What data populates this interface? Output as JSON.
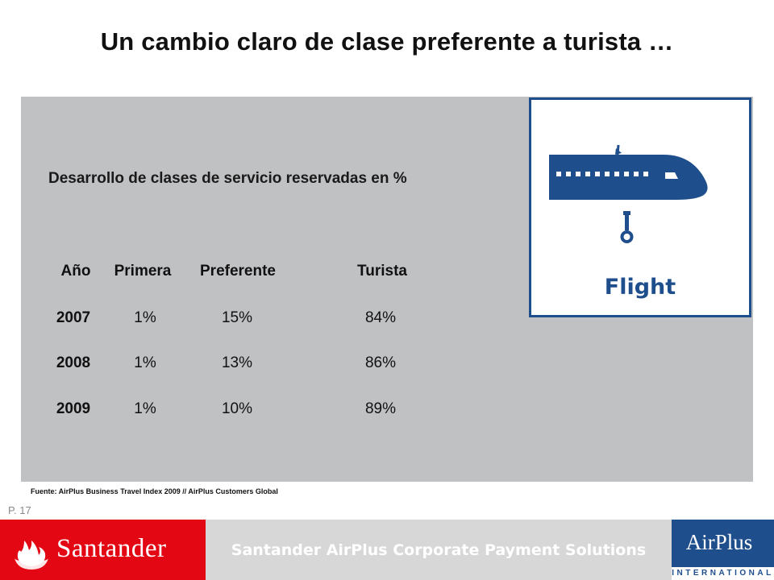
{
  "slide": {
    "title": "Un cambio claro de clase preferente a turista …",
    "page_number": "P. 17",
    "source_note": "Fuente: AirPlus Business Travel Index 2009 // AirPlus Customers Global"
  },
  "table": {
    "caption": "Desarrollo de clases de servicio reservadas en %",
    "headers": [
      "Año",
      "Primera",
      "Preferente",
      "Turista"
    ],
    "rows": [
      [
        "2007",
        "1%",
        "15%",
        "84%"
      ],
      [
        "2008",
        "1%",
        "13%",
        "86%"
      ],
      [
        "2009",
        "1%",
        "10%",
        "89%"
      ]
    ]
  },
  "flight_panel": {
    "label": "Flight",
    "icon": "airplane-icon",
    "color": "#1f4e8c"
  },
  "footer": {
    "brand_left": "Santander",
    "tagline": "Santander AirPlus Corporate Payment Solutions",
    "brand_right": "AirPlus",
    "brand_right_sub": "INTERNATIONAL",
    "colors": {
      "santander_red": "#e30613",
      "airplus_blue": "#1f4e8c",
      "bar_gray": "#d7d7d7"
    }
  }
}
